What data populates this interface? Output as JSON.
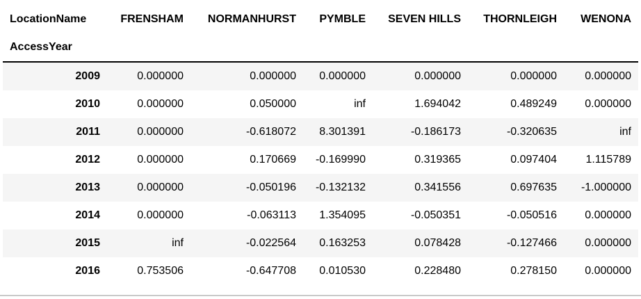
{
  "table": {
    "columns_label": "LocationName",
    "index_label": "AccessYear",
    "columns": [
      "FRENSHAM",
      "NORMANHURST",
      "PYMBLE",
      "SEVEN HILLS",
      "THORNLEIGH",
      "WENONA"
    ],
    "rows": [
      {
        "year": "2009",
        "values": [
          "0.000000",
          "0.000000",
          "0.000000",
          "0.000000",
          "0.000000",
          "0.000000"
        ]
      },
      {
        "year": "2010",
        "values": [
          "0.000000",
          "0.050000",
          "inf",
          "1.694042",
          "0.489249",
          "0.000000"
        ]
      },
      {
        "year": "2011",
        "values": [
          "0.000000",
          "-0.618072",
          "8.301391",
          "-0.186173",
          "-0.320635",
          "inf"
        ]
      },
      {
        "year": "2012",
        "values": [
          "0.000000",
          "0.170669",
          "-0.169990",
          "0.319365",
          "0.097404",
          "1.115789"
        ]
      },
      {
        "year": "2013",
        "values": [
          "0.000000",
          "-0.050196",
          "-0.132132",
          "0.341556",
          "0.697635",
          "-1.000000"
        ]
      },
      {
        "year": "2014",
        "values": [
          "0.000000",
          "-0.063113",
          "1.354095",
          "-0.050351",
          "-0.050516",
          "0.000000"
        ]
      },
      {
        "year": "2015",
        "values": [
          "inf",
          "-0.022564",
          "0.163253",
          "0.078428",
          "-0.127466",
          "0.000000"
        ]
      },
      {
        "year": "2016",
        "values": [
          "0.753506",
          "-0.647708",
          "0.010530",
          "0.228480",
          "0.278150",
          "0.000000"
        ]
      }
    ]
  }
}
